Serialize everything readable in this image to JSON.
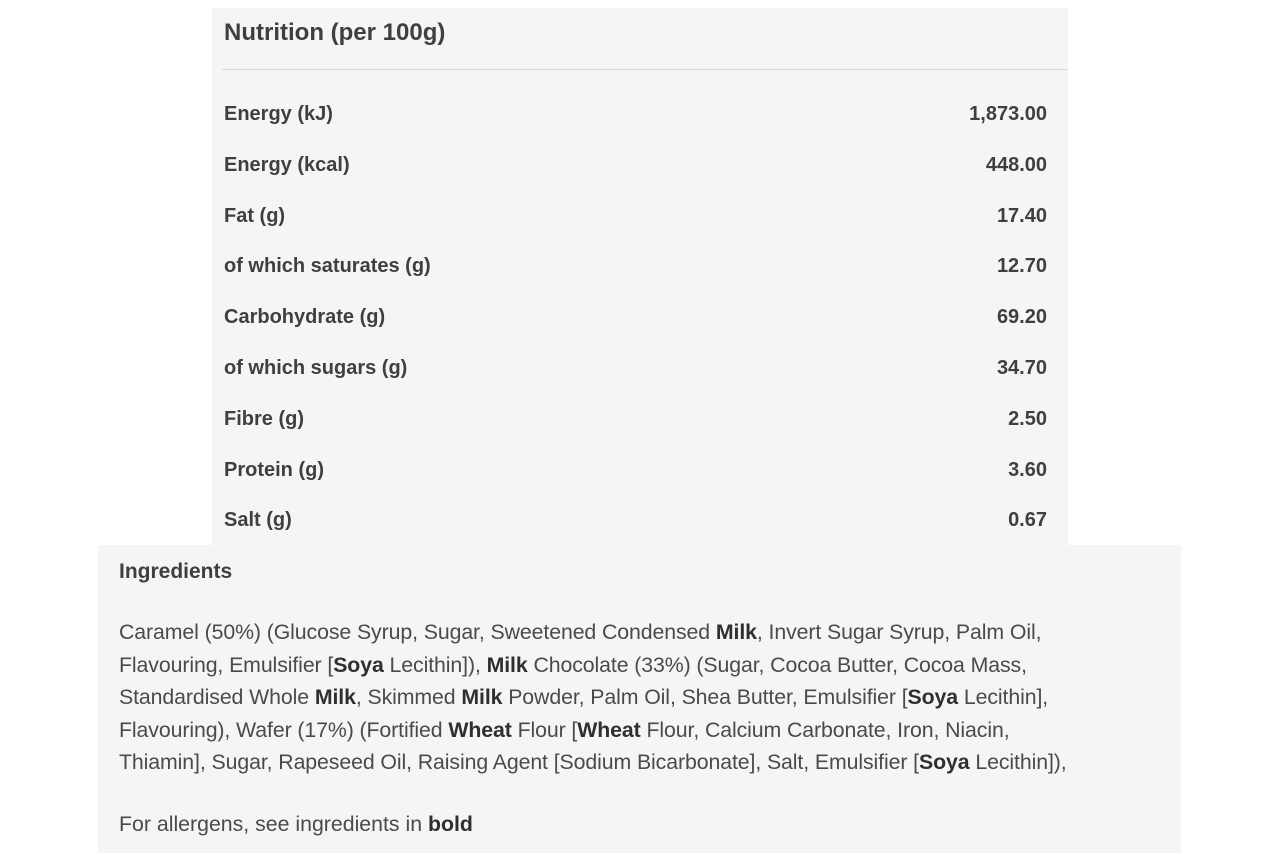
{
  "nutrition": {
    "title": "Nutrition (per 100g)",
    "rows": [
      {
        "label": "Energy (kJ)",
        "value": "1,873.00"
      },
      {
        "label": "Energy (kcal)",
        "value": "448.00"
      },
      {
        "label": "Fat (g)",
        "value": "17.40"
      },
      {
        "label": "of which saturates (g)",
        "value": "12.70"
      },
      {
        "label": "Carbohydrate (g)",
        "value": "69.20"
      },
      {
        "label": "of which sugars (g)",
        "value": "34.70"
      },
      {
        "label": "Fibre (g)",
        "value": "2.50"
      },
      {
        "label": "Protein (g)",
        "value": "3.60"
      },
      {
        "label": "Salt (g)",
        "value": "0.67"
      }
    ]
  },
  "ingredients": {
    "title": "Ingredients",
    "lines": [
      [
        {
          "t": "Caramel (50%) (Glucose Syrup, Sugar, Sweetened Condensed ",
          "b": false
        },
        {
          "t": "Milk",
          "b": true
        },
        {
          "t": ", Invert Sugar Syrup, Palm Oil,",
          "b": false
        }
      ],
      [
        {
          "t": "Flavouring, Emulsifier [",
          "b": false
        },
        {
          "t": "Soya",
          "b": true
        },
        {
          "t": " Lecithin]), ",
          "b": false
        },
        {
          "t": "Milk",
          "b": true
        },
        {
          "t": " Chocolate (33%) (Sugar, Cocoa Butter, Cocoa Mass,",
          "b": false
        }
      ],
      [
        {
          "t": "Standardised Whole ",
          "b": false
        },
        {
          "t": "Milk",
          "b": true
        },
        {
          "t": ", Skimmed ",
          "b": false
        },
        {
          "t": "Milk",
          "b": true
        },
        {
          "t": " Powder, Palm Oil, Shea Butter, Emulsifier [",
          "b": false
        },
        {
          "t": "Soya",
          "b": true
        },
        {
          "t": " Lecithin],",
          "b": false
        }
      ],
      [
        {
          "t": "Flavouring), Wafer (17%) (Fortified ",
          "b": false
        },
        {
          "t": "Wheat",
          "b": true
        },
        {
          "t": " Flour [",
          "b": false
        },
        {
          "t": "Wheat",
          "b": true
        },
        {
          "t": " Flour, Calcium Carbonate, Iron, Niacin,",
          "b": false
        }
      ],
      [
        {
          "t": "Thiamin], Sugar, Rapeseed Oil, Raising Agent [Sodium Bicarbonate], Salt, Emulsifier [",
          "b": false
        },
        {
          "t": "Soya",
          "b": true
        },
        {
          "t": " Lecithin]),",
          "b": false
        }
      ]
    ],
    "allergen_prefix": "For allergens, see ingredients in ",
    "allergen_bold": "bold"
  }
}
